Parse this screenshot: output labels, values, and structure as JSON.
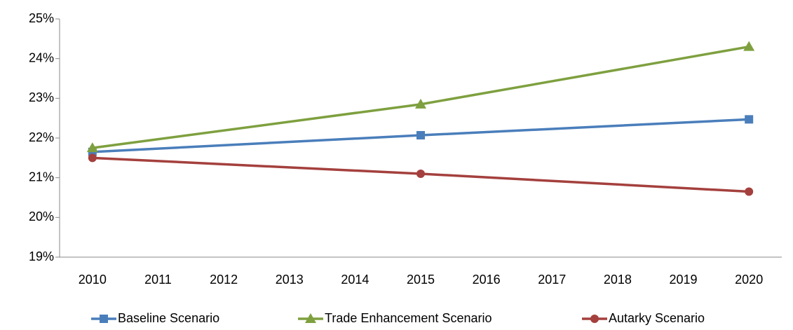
{
  "chart_data": {
    "type": "line",
    "x": [
      2010,
      2015,
      2020
    ],
    "xlim": [
      2009.5,
      2020.5
    ],
    "xticks": [
      2010,
      2011,
      2012,
      2013,
      2014,
      2015,
      2016,
      2017,
      2018,
      2019,
      2020
    ],
    "ylim": [
      19,
      25
    ],
    "yticks": [
      {
        "value": 19,
        "label": "19%"
      },
      {
        "value": 20,
        "label": "20%"
      },
      {
        "value": 21,
        "label": "21%"
      },
      {
        "value": 22,
        "label": "22%"
      },
      {
        "value": 23,
        "label": "23%"
      },
      {
        "value": 24,
        "label": "24%"
      },
      {
        "value": 25,
        "label": "25%"
      }
    ],
    "legend": "bottom",
    "series": [
      {
        "name": "Baseline Scenario",
        "color": "#4a7ebb",
        "marker": "square",
        "values": [
          21.65,
          22.07,
          22.47
        ]
      },
      {
        "name": "Trade Enhancement Scenario",
        "color": "#7ea03f",
        "marker": "triangle",
        "values": [
          21.75,
          22.85,
          24.3
        ]
      },
      {
        "name": "Autarky Scenario",
        "color": "#a4403d",
        "marker": "circle",
        "values": [
          21.5,
          21.1,
          20.65
        ]
      }
    ]
  }
}
